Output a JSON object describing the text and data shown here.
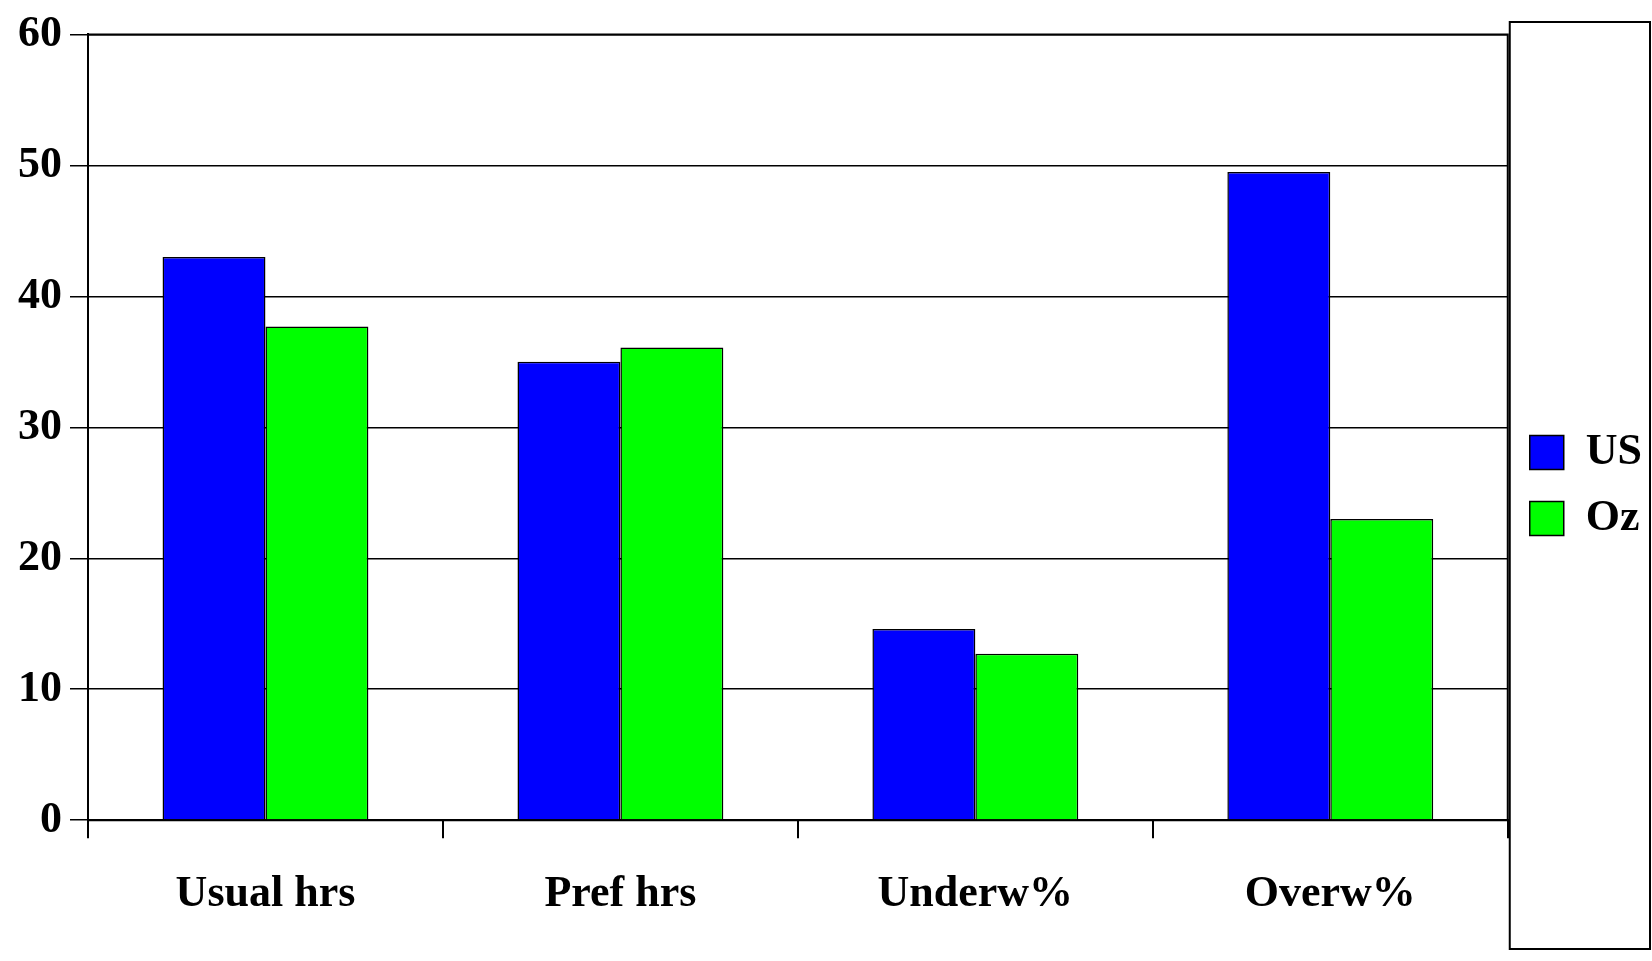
{
  "chart_data": {
    "type": "bar",
    "categories": [
      "Usual hrs",
      "Pref hrs",
      "Underw%",
      "Overw%"
    ],
    "series": [
      {
        "name": "US",
        "color": "#0000ff",
        "values": [
          43,
          35,
          14.6,
          49.5
        ]
      },
      {
        "name": "Oz",
        "color": "#00ff00",
        "values": [
          37.7,
          36.1,
          12.7,
          23
        ]
      }
    ],
    "ylim": [
      0,
      60
    ],
    "yticks": [
      0,
      10,
      20,
      30,
      40,
      50,
      60
    ],
    "grid": "y",
    "legend": "right"
  }
}
